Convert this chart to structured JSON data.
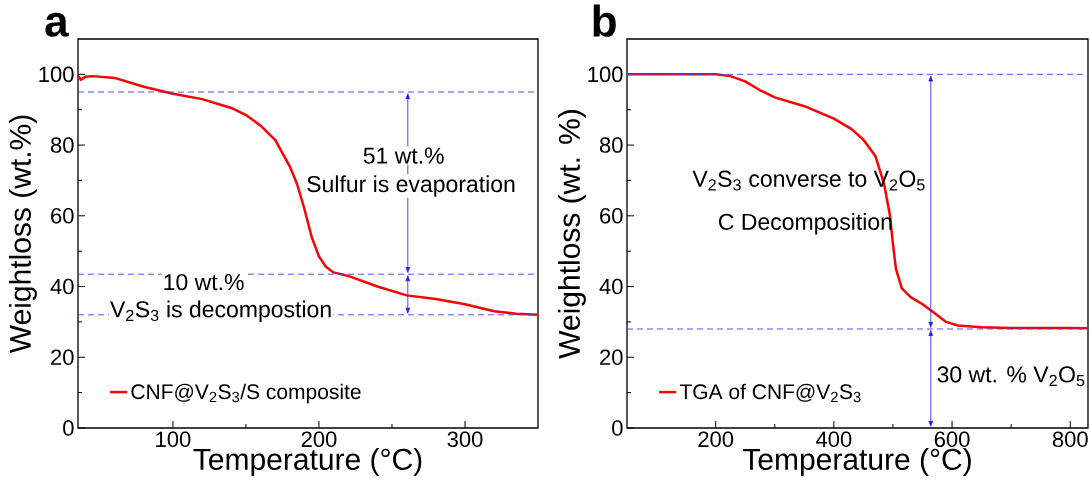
{
  "chart_data": [
    {
      "type": "line",
      "title": "a",
      "xlabel": "Temperature (°C)",
      "ylabel": "Weightloss (wt.%)",
      "xlim": [
        35,
        350
      ],
      "xticks": [
        100,
        200,
        300
      ],
      "ylim": [
        0,
        110
      ],
      "yticks": [
        0,
        20,
        40,
        60,
        80,
        100
      ],
      "legend": "bottom left",
      "line_style": "solid",
      "series": [
        {
          "name": "CNF@V$_{2}$S$_{3}$/S composite",
          "color": "#ff0000",
          "x": [
            35,
            37,
            40,
            45,
            60,
            80,
            100,
            120,
            140,
            150,
            160,
            170,
            180,
            185,
            190,
            195,
            200,
            205,
            210,
            220,
            240,
            260,
            280,
            300,
            320,
            335,
            350
          ],
          "values": [
            99.5,
            98.5,
            99.3,
            99.5,
            99,
            96.5,
            94.5,
            93,
            90.5,
            88.5,
            85.5,
            81.5,
            74,
            69,
            62,
            54,
            48.5,
            45.5,
            44,
            43,
            40,
            37.5,
            36.5,
            35,
            33,
            32.3,
            32
          ]
        }
      ],
      "ref_lines": [
        {
          "axis": "y",
          "value": 95,
          "color": "#4040ff",
          "line_style": "dashed"
        },
        {
          "axis": "y",
          "value": 43.5,
          "color": "#4040ff",
          "line_style": "dashed"
        },
        {
          "axis": "y",
          "value": 32,
          "color": "#4040ff",
          "line_style": "dashed"
        }
      ],
      "annotations": [
        "51 wt.%",
        "Sulfur is evaporation",
        "10 wt.%",
        "V$_{2}$S$_{3}$ is decompostion"
      ]
    },
    {
      "type": "line",
      "title": "b",
      "xlabel": "Temperature (°C)",
      "ylabel": "Weightloss (wt. %)",
      "xlim": [
        50,
        830
      ],
      "xticks": [
        200,
        400,
        600,
        800
      ],
      "ylim": [
        0,
        110
      ],
      "yticks": [
        0,
        20,
        40,
        60,
        80,
        100
      ],
      "legend": "bottom left",
      "line_style": "solid",
      "series": [
        {
          "name": "TGA of CNF@V$_{2}$S$_{3}$",
          "color": "#ff0000",
          "x": [
            50,
            200,
            225,
            250,
            275,
            300,
            350,
            400,
            430,
            450,
            470,
            485,
            495,
            500,
            505,
            515,
            530,
            550,
            570,
            590,
            610,
            650,
            700,
            800,
            830
          ],
          "values": [
            100,
            100,
            99.5,
            98,
            95.5,
            93.5,
            91,
            87.5,
            84.5,
            81.5,
            77,
            69,
            60,
            52,
            45,
            39.5,
            37,
            35,
            32.5,
            30,
            29,
            28.5,
            28.3,
            28.3,
            28.2
          ]
        }
      ],
      "ref_lines": [
        {
          "axis": "y",
          "value": 100,
          "color": "#4040ff",
          "line_style": "dashed"
        },
        {
          "axis": "y",
          "value": 28,
          "color": "#4040ff",
          "line_style": "dashed"
        }
      ],
      "annotations": [
        "V$_{2}$S$_{3}$ converse to V$_{2}$O$_{5}$",
        "C  Decomposition",
        "30 wt. % V$_{2}$O$_{5}$"
      ]
    }
  ]
}
